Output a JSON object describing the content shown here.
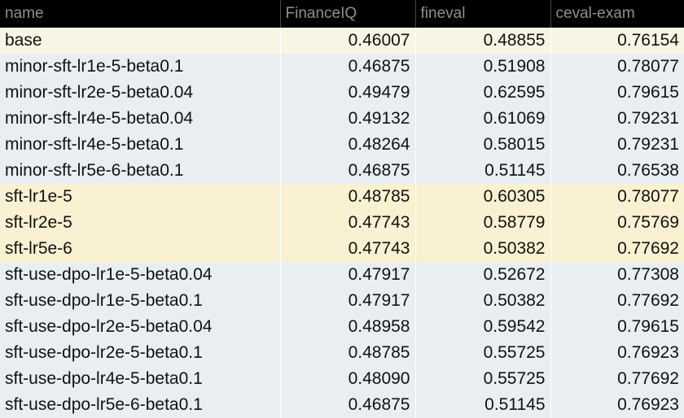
{
  "chart_data": {
    "type": "table",
    "columns": [
      "name",
      "FinanceIQ",
      "fineval",
      "ceval-exam"
    ],
    "rows": [
      {
        "name": "base",
        "FinanceIQ": "0.46007",
        "fineval": "0.48855",
        "ceval_exam": "0.76154",
        "group": "base",
        "highlight": false
      },
      {
        "name": "minor-sft-lr1e-5-beta0.1",
        "FinanceIQ": "0.46875",
        "fineval": "0.51908",
        "ceval_exam": "0.78077",
        "group": "minor",
        "highlight": false
      },
      {
        "name": "minor-sft-lr2e-5-beta0.04",
        "FinanceIQ": "0.49479",
        "fineval": "0.62595",
        "ceval_exam": "0.79615",
        "group": "minor",
        "highlight": true
      },
      {
        "name": "minor-sft-lr4e-5-beta0.04",
        "FinanceIQ": "0.49132",
        "fineval": "0.61069",
        "ceval_exam": "0.79231",
        "group": "minor",
        "highlight": false
      },
      {
        "name": "minor-sft-lr4e-5-beta0.1",
        "FinanceIQ": "0.48264",
        "fineval": "0.58015",
        "ceval_exam": "0.79231",
        "group": "minor",
        "highlight": false
      },
      {
        "name": "minor-sft-lr5e-6-beta0.1",
        "FinanceIQ": "0.46875",
        "fineval": "0.51145",
        "ceval_exam": "0.76538",
        "group": "minor",
        "highlight": false
      },
      {
        "name": "sft-lr1e-5",
        "FinanceIQ": "0.48785",
        "fineval": "0.60305",
        "ceval_exam": "0.78077",
        "group": "sft",
        "highlight": true
      },
      {
        "name": "sft-lr2e-5",
        "FinanceIQ": "0.47743",
        "fineval": "0.58779",
        "ceval_exam": "0.75769",
        "group": "sft",
        "highlight": false
      },
      {
        "name": "sft-lr5e-6",
        "FinanceIQ": "0.47743",
        "fineval": "0.50382",
        "ceval_exam": "0.77692",
        "group": "sft",
        "highlight": false
      },
      {
        "name": "sft-use-dpo-lr1e-5-beta0.04",
        "FinanceIQ": "0.47917",
        "fineval": "0.52672",
        "ceval_exam": "0.77308",
        "group": "dpo",
        "highlight": false
      },
      {
        "name": "sft-use-dpo-lr1e-5-beta0.1",
        "FinanceIQ": "0.47917",
        "fineval": "0.50382",
        "ceval_exam": "0.77692",
        "group": "dpo",
        "highlight": false
      },
      {
        "name": "sft-use-dpo-lr2e-5-beta0.04",
        "FinanceIQ": "0.48958",
        "fineval": "0.59542",
        "ceval_exam": "0.79615",
        "group": "dpo",
        "highlight": true
      },
      {
        "name": "sft-use-dpo-lr2e-5-beta0.1",
        "FinanceIQ": "0.48785",
        "fineval": "0.55725",
        "ceval_exam": "0.76923",
        "group": "dpo",
        "highlight": false
      },
      {
        "name": "sft-use-dpo-lr4e-5-beta0.1",
        "FinanceIQ": "0.48090",
        "fineval": "0.55725",
        "ceval_exam": "0.77692",
        "group": "dpo",
        "highlight": false
      },
      {
        "name": "sft-use-dpo-lr5e-6-beta0.1",
        "FinanceIQ": "0.46875",
        "fineval": "0.51145",
        "ceval_exam": "0.76923",
        "group": "dpo",
        "highlight": false
      }
    ],
    "colors": {
      "header_bg": "#000000",
      "header_text": "#8f8f8f",
      "highlight_text": "#e8423a",
      "base_bg": "#f7f5e3",
      "minor_bg": "#e9eef2",
      "sft_bg": "#faf1d2",
      "dpo_bg": "#e9eef2"
    }
  }
}
